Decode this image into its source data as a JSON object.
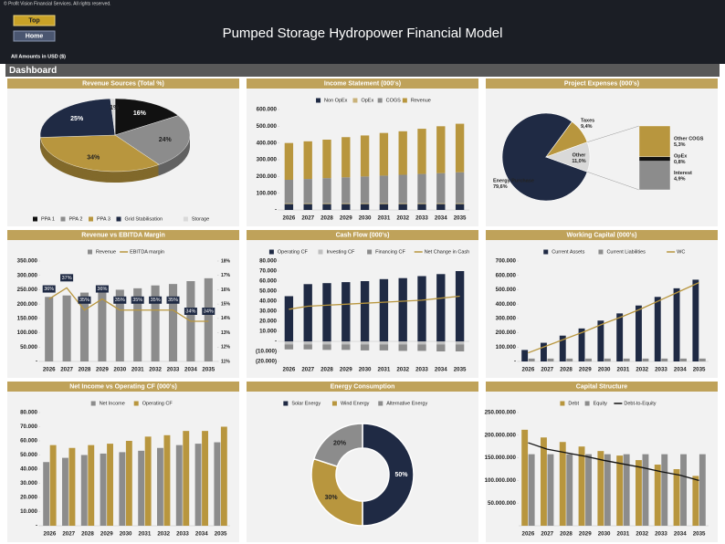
{
  "copyright": "© Profit Vision Financial Services. All rights reserved.",
  "buttons": [
    "Top",
    "Home"
  ],
  "title": "Pumped Storage Hydropower Financial Model",
  "amounts_note": "All Amounts in  USD ($)",
  "section": "Dashboard",
  "chart_data": [
    {
      "type": "pie3d",
      "title": "Revenue Sources (Total %)",
      "legend": "bottom",
      "categories": [
        "PPA 1",
        "PPA 2",
        "PPA 3",
        "Grid Stabilisation",
        "Storage"
      ],
      "values": [
        16,
        24,
        34,
        25,
        1
      ],
      "value_labels": [
        "16%",
        "24%",
        "34%",
        "25%",
        "1%"
      ],
      "colors": [
        "#111111",
        "#8c8c8c",
        "#b8963e",
        "#1f2a44",
        "#d9d9d9"
      ]
    },
    {
      "type": "bar",
      "title": "Income Statement (000's)",
      "stacked": true,
      "legend": "top",
      "categories": [
        "2026",
        "2027",
        "2028",
        "2029",
        "2030",
        "2031",
        "2032",
        "2033",
        "2034",
        "2035"
      ],
      "series": [
        {
          "name": "Non OpEx",
          "color": "#1f2a44",
          "kind": "bar",
          "values": [
            35000,
            35000,
            35000,
            35000,
            35000,
            35000,
            35000,
            35000,
            35000,
            35000
          ]
        },
        {
          "name": "OpEx",
          "color": "#c9b27a",
          "kind": "bar",
          "values": [
            5000,
            5000,
            5000,
            5000,
            5000,
            5000,
            5000,
            5000,
            5000,
            5000
          ]
        },
        {
          "name": "COGS",
          "color": "#8c8c8c",
          "kind": "bar",
          "values": [
            140000,
            145000,
            150000,
            155000,
            160000,
            165000,
            170000,
            175000,
            180000,
            185000
          ]
        },
        {
          "name": "Revenue",
          "color": "#b8963e",
          "kind": "bar",
          "values": [
            220000,
            225000,
            230000,
            240000,
            245000,
            255000,
            260000,
            270000,
            280000,
            290000
          ]
        }
      ],
      "ylim": [
        0,
        600000
      ],
      "yticks": [
        {
          "value": 0,
          "label": "-"
        },
        {
          "value": 100000,
          "label": "100.000"
        },
        {
          "value": 200000,
          "label": "200.000"
        },
        {
          "value": 300000,
          "label": "300.000"
        },
        {
          "value": 400000,
          "label": "400.000"
        },
        {
          "value": 500000,
          "label": "500.000"
        },
        {
          "value": 600000,
          "label": "600.000"
        }
      ]
    },
    {
      "type": "pie_of_pie",
      "title": "Project Expenses (000's)",
      "categories": [
        "Energy Purchase",
        "Taxes",
        "Other"
      ],
      "values": [
        79.6,
        9.4,
        11.0
      ],
      "value_labels": [
        "79,6%",
        "9,4%",
        "11,0%"
      ],
      "colors": [
        "#1f2a44",
        "#b8963e",
        "#d9d9d9"
      ],
      "breakdown": {
        "categories": [
          "Other COGS",
          "OpEx",
          "Interest"
        ],
        "values": [
          5.3,
          0.8,
          4.9
        ],
        "value_labels": [
          "5,3%",
          "0,8%",
          "4,9%"
        ],
        "colors": [
          "#b8963e",
          "#111111",
          "#8c8c8c"
        ]
      }
    },
    {
      "type": "bar",
      "title": "Revenue vs EBITDA Margin",
      "stacked": false,
      "legend": "top",
      "categories": [
        "2026",
        "2027",
        "2028",
        "2029",
        "2030",
        "2031",
        "2032",
        "2033",
        "2034",
        "2035"
      ],
      "series": [
        {
          "name": "Revenue",
          "color": "#8c8c8c",
          "kind": "bar",
          "values": [
            225000,
            230000,
            240000,
            245000,
            250000,
            255000,
            265000,
            270000,
            280000,
            290000
          ]
        },
        {
          "name": "EBITDA margin",
          "color": "#b8963e",
          "kind": "line",
          "axis": "y2",
          "values": [
            36,
            37,
            35,
            36,
            35,
            35,
            35,
            35,
            34,
            34
          ],
          "value_labels": [
            "36%",
            "37%",
            "35%",
            "36%",
            "35%",
            "35%",
            "35%",
            "35%",
            "34%",
            "34%"
          ]
        }
      ],
      "ylim": [
        0,
        350000
      ],
      "yticks": [
        {
          "value": 0,
          "label": "-"
        },
        {
          "value": 50000,
          "label": "50.000"
        },
        {
          "value": 100000,
          "label": "100.000"
        },
        {
          "value": 150000,
          "label": "150.000"
        },
        {
          "value": 200000,
          "label": "200.000"
        },
        {
          "value": 250000,
          "label": "250.000"
        },
        {
          "value": 300000,
          "label": "300.000"
        },
        {
          "value": 350000,
          "label": "350.000"
        }
      ],
      "y2ticks": [
        {
          "value": 11,
          "label": "11%"
        },
        {
          "value": 12,
          "label": "12%"
        },
        {
          "value": 13,
          "label": "13%"
        },
        {
          "value": 14,
          "label": "14%"
        },
        {
          "value": 15,
          "label": "15%"
        },
        {
          "value": 16,
          "label": "16%"
        },
        {
          "value": 17,
          "label": "17%"
        },
        {
          "value": 18,
          "label": "18%"
        }
      ]
    },
    {
      "type": "bar",
      "title": "Cash Flow (000's)",
      "stacked": true,
      "legend": "top",
      "categories": [
        "2026",
        "2027",
        "2028",
        "2029",
        "2030",
        "2031",
        "2032",
        "2033",
        "2034",
        "2035"
      ],
      "series": [
        {
          "name": "Operating CF",
          "color": "#1f2a44",
          "kind": "bar",
          "values": [
            45000,
            57000,
            58000,
            59000,
            60000,
            62000,
            63000,
            65000,
            67000,
            70000
          ]
        },
        {
          "name": "Investing CF",
          "color": "#bfbfbf",
          "kind": "bar",
          "values": [
            -3000,
            -3000,
            -3000,
            -3000,
            -3000,
            -3000,
            -3000,
            -3000,
            -3000,
            -3000
          ]
        },
        {
          "name": "Financing CF",
          "color": "#8c8c8c",
          "kind": "bar",
          "values": [
            -5000,
            -5000,
            -5500,
            -5500,
            -6000,
            -6000,
            -6500,
            -6500,
            -7000,
            -7000
          ]
        },
        {
          "name": "Net Change in Cash",
          "color": "#b8963e",
          "kind": "line",
          "values": [
            32000,
            35000,
            36000,
            37000,
            38000,
            39000,
            40000,
            41000,
            43000,
            45000
          ]
        }
      ],
      "ylim": [
        -20000,
        80000
      ],
      "yticks": [
        {
          "value": -20000,
          "label": "(20.000)"
        },
        {
          "value": -10000,
          "label": "(10.000)"
        },
        {
          "value": 0,
          "label": "-"
        },
        {
          "value": 10000,
          "label": "10.000"
        },
        {
          "value": 20000,
          "label": "20.000"
        },
        {
          "value": 30000,
          "label": "30.000"
        },
        {
          "value": 40000,
          "label": "40.000"
        },
        {
          "value": 50000,
          "label": "50.000"
        },
        {
          "value": 60000,
          "label": "60.000"
        },
        {
          "value": 70000,
          "label": "70.000"
        },
        {
          "value": 80000,
          "label": "80.000"
        }
      ]
    },
    {
      "type": "bar",
      "title": "Working Capital (000's)",
      "stacked": false,
      "legend": "top",
      "categories": [
        "2026",
        "2027",
        "2028",
        "2029",
        "2030",
        "2031",
        "2032",
        "2033",
        "2034",
        "2035"
      ],
      "series": [
        {
          "name": "Current Assets",
          "color": "#1f2a44",
          "kind": "bar",
          "values": [
            80000,
            130000,
            180000,
            230000,
            285000,
            335000,
            390000,
            450000,
            510000,
            570000
          ]
        },
        {
          "name": "Current Liabilities",
          "color": "#8c8c8c",
          "kind": "bar",
          "values": [
            20000,
            20000,
            20000,
            20000,
            20000,
            20000,
            20000,
            20000,
            20000,
            20000
          ]
        },
        {
          "name": "WC",
          "color": "#b8963e",
          "kind": "line",
          "values": [
            60000,
            110000,
            160000,
            210000,
            265000,
            315000,
            370000,
            430000,
            490000,
            550000
          ]
        }
      ],
      "ylim": [
        0,
        700000
      ],
      "yticks": [
        {
          "value": 0,
          "label": "-"
        },
        {
          "value": 100000,
          "label": "100.000"
        },
        {
          "value": 200000,
          "label": "200.000"
        },
        {
          "value": 300000,
          "label": "300.000"
        },
        {
          "value": 400000,
          "label": "400.000"
        },
        {
          "value": 500000,
          "label": "500.000"
        },
        {
          "value": 600000,
          "label": "600.000"
        },
        {
          "value": 700000,
          "label": "700.000"
        }
      ]
    },
    {
      "type": "bar",
      "title": "Net Income vs Operating CF (000's)",
      "stacked": false,
      "legend": "top",
      "categories": [
        "2026",
        "2027",
        "2028",
        "2029",
        "2030",
        "2031",
        "2032",
        "2033",
        "2034",
        "2035"
      ],
      "series": [
        {
          "name": "Net Income",
          "color": "#8c8c8c",
          "kind": "bar",
          "values": [
            45000,
            48000,
            50000,
            51000,
            52000,
            53000,
            55000,
            57000,
            58000,
            59000
          ]
        },
        {
          "name": "Operating CF",
          "color": "#b8963e",
          "kind": "bar",
          "values": [
            57000,
            55000,
            57000,
            58000,
            60000,
            63000,
            64000,
            67000,
            67000,
            70000
          ]
        }
      ],
      "ylim": [
        0,
        80000
      ],
      "yticks": [
        {
          "value": 0,
          "label": "-"
        },
        {
          "value": 10000,
          "label": "10.000"
        },
        {
          "value": 20000,
          "label": "20.000"
        },
        {
          "value": 30000,
          "label": "30.000"
        },
        {
          "value": 40000,
          "label": "40.000"
        },
        {
          "value": 50000,
          "label": "50.000"
        },
        {
          "value": 60000,
          "label": "60.000"
        },
        {
          "value": 70000,
          "label": "70.000"
        },
        {
          "value": 80000,
          "label": "80.000"
        }
      ]
    },
    {
      "type": "donut",
      "title": "Energy Consumption",
      "legend": "top",
      "categories": [
        "Solar Energy",
        "Wind Energy",
        "Alternative Energy"
      ],
      "values": [
        50,
        30,
        20
      ],
      "value_labels": [
        "50%",
        "30%",
        "20%"
      ],
      "colors": [
        "#1f2a44",
        "#b8963e",
        "#8c8c8c"
      ]
    },
    {
      "type": "bar",
      "title": "Capital Structure",
      "stacked": false,
      "legend": "top",
      "categories": [
        "2026",
        "2027",
        "2028",
        "2029",
        "2030",
        "2031",
        "2032",
        "2033",
        "2034",
        "2035"
      ],
      "series": [
        {
          "name": "Debt",
          "color": "#b8963e",
          "kind": "bar",
          "values": [
            212000000,
            195000000,
            185000000,
            175000000,
            165000000,
            155000000,
            145000000,
            135000000,
            125000000,
            110000000
          ]
        },
        {
          "name": "Equity",
          "color": "#8c8c8c",
          "kind": "bar",
          "values": [
            158000000,
            158000000,
            158000000,
            158000000,
            158000000,
            158000000,
            158000000,
            158000000,
            158000000,
            158000000
          ]
        },
        {
          "name": "Debt-to-Equity",
          "color": "#111111",
          "kind": "line",
          "axis": "y2",
          "values": [
            1.34,
            1.23,
            1.17,
            1.11,
            1.04,
            0.98,
            0.92,
            0.85,
            0.79,
            0.7
          ]
        }
      ],
      "ylim": [
        0,
        250000000
      ],
      "yticks": [
        {
          "value": 50000000,
          "label": "50.000.000"
        },
        {
          "value": 100000000,
          "label": "100.000.000"
        },
        {
          "value": 150000000,
          "label": "150.000.000"
        },
        {
          "value": 200000000,
          "label": "200.000.000"
        },
        {
          "value": 250000000,
          "label": "250.000.000"
        }
      ]
    }
  ]
}
